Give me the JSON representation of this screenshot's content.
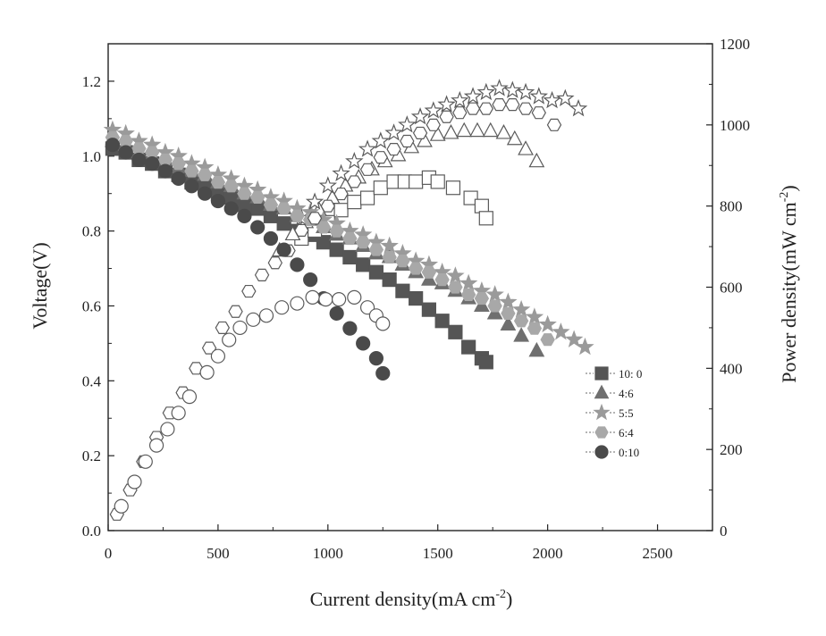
{
  "chart_data": {
    "type": "scatter",
    "xlabel": "Current density(mA cm",
    "xlabel_sup": "-2",
    "xlabel_end": ")",
    "ylabel_left": "Voltage(V)",
    "ylabel_right": "Power density(mW cm",
    "ylabel_right_sup": "-2",
    "ylabel_right_end": ")",
    "xlim": [
      0,
      2750
    ],
    "ylim_left": [
      0,
      1.3
    ],
    "ylim_right": [
      0,
      1200
    ],
    "x_ticks": [
      "0",
      "500",
      "1000",
      "1500",
      "2000",
      "2500"
    ],
    "y_left_ticks": [
      "0.0",
      "0.2",
      "0.4",
      "0.6",
      "0.8",
      "1.0",
      "1.2"
    ],
    "y_right_ticks": [
      "0",
      "200",
      "400",
      "600",
      "800",
      "1000",
      "1200"
    ],
    "grid": false,
    "legend_position": "right",
    "colors": {
      "s10_0": "#555555",
      "s4_6": "#6f6f6f",
      "s5_5": "#9a9a9a",
      "s6_4": "#a8a8a8",
      "s0_10": "#4a4a4a"
    },
    "series": [
      {
        "name": "10:  0",
        "marker": "square",
        "voltage": {
          "x": [
            20,
            80,
            140,
            200,
            260,
            320,
            380,
            440,
            500,
            560,
            620,
            680,
            740,
            800,
            860,
            920,
            980,
            1040,
            1100,
            1160,
            1220,
            1280,
            1340,
            1400,
            1460,
            1520,
            1580,
            1640,
            1700,
            1720
          ],
          "y": [
            1.02,
            1.01,
            0.99,
            0.98,
            0.96,
            0.95,
            0.93,
            0.92,
            0.9,
            0.89,
            0.87,
            0.86,
            0.84,
            0.82,
            0.8,
            0.79,
            0.77,
            0.75,
            0.73,
            0.71,
            0.69,
            0.67,
            0.64,
            0.62,
            0.59,
            0.56,
            0.53,
            0.49,
            0.46,
            0.45
          ]
        },
        "power": {
          "x": [
            880,
            940,
            1000,
            1060,
            1120,
            1180,
            1240,
            1300,
            1350,
            1400,
            1460,
            1500,
            1570,
            1650,
            1700,
            1720
          ],
          "y": [
            720,
            740,
            760,
            790,
            810,
            820,
            845,
            860,
            860,
            860,
            870,
            860,
            845,
            820,
            800,
            770
          ]
        }
      },
      {
        "name": "4:6",
        "marker": "triangle",
        "voltage": {
          "x": [
            20,
            80,
            140,
            200,
            260,
            320,
            380,
            440,
            500,
            560,
            620,
            680,
            740,
            800,
            860,
            920,
            980,
            1040,
            1100,
            1160,
            1220,
            1280,
            1340,
            1400,
            1460,
            1520,
            1580,
            1640,
            1700,
            1760,
            1820,
            1880,
            1950
          ],
          "y": [
            1.04,
            1.03,
            1.01,
            1.0,
            0.99,
            0.97,
            0.96,
            0.95,
            0.93,
            0.92,
            0.9,
            0.89,
            0.87,
            0.86,
            0.84,
            0.83,
            0.81,
            0.79,
            0.78,
            0.76,
            0.74,
            0.73,
            0.71,
            0.69,
            0.67,
            0.66,
            0.64,
            0.62,
            0.6,
            0.58,
            0.55,
            0.52,
            0.48
          ]
        },
        "power": {
          "x": [
            780,
            840,
            900,
            960,
            1020,
            1080,
            1140,
            1200,
            1260,
            1320,
            1380,
            1440,
            1500,
            1560,
            1620,
            1680,
            1740,
            1800,
            1850,
            1900,
            1950
          ],
          "y": [
            690,
            730,
            760,
            790,
            820,
            850,
            870,
            890,
            910,
            925,
            945,
            960,
            975,
            980,
            985,
            985,
            985,
            980,
            965,
            940,
            910
          ]
        }
      },
      {
        "name": "5:5",
        "marker": "star",
        "voltage": {
          "x": [
            20,
            80,
            140,
            200,
            260,
            320,
            380,
            440,
            500,
            560,
            620,
            680,
            740,
            800,
            860,
            920,
            980,
            1040,
            1100,
            1160,
            1220,
            1280,
            1340,
            1400,
            1460,
            1520,
            1580,
            1640,
            1700,
            1760,
            1820,
            1880,
            1940,
            2000,
            2060,
            2120,
            2170
          ],
          "y": [
            1.07,
            1.06,
            1.04,
            1.03,
            1.01,
            1.0,
            0.98,
            0.97,
            0.95,
            0.94,
            0.92,
            0.91,
            0.89,
            0.88,
            0.86,
            0.85,
            0.83,
            0.82,
            0.8,
            0.79,
            0.77,
            0.76,
            0.74,
            0.72,
            0.71,
            0.69,
            0.68,
            0.66,
            0.64,
            0.63,
            0.61,
            0.59,
            0.57,
            0.55,
            0.53,
            0.51,
            0.49
          ]
        },
        "power": {
          "x": [
            880,
            940,
            1000,
            1060,
            1120,
            1180,
            1240,
            1300,
            1360,
            1420,
            1480,
            1540,
            1600,
            1660,
            1720,
            1780,
            1840,
            1900,
            1960,
            2020,
            2080,
            2140
          ],
          "y": [
            770,
            810,
            850,
            880,
            910,
            940,
            960,
            980,
            1000,
            1020,
            1035,
            1050,
            1060,
            1070,
            1080,
            1090,
            1085,
            1080,
            1070,
            1060,
            1065,
            1040
          ]
        }
      },
      {
        "name": "6:4",
        "marker": "hexagon",
        "voltage": {
          "x": [
            20,
            80,
            140,
            200,
            260,
            320,
            380,
            440,
            500,
            560,
            620,
            680,
            740,
            800,
            860,
            920,
            980,
            1040,
            1100,
            1160,
            1220,
            1280,
            1340,
            1400,
            1460,
            1520,
            1580,
            1640,
            1700,
            1760,
            1820,
            1880,
            1940,
            2000
          ],
          "y": [
            1.05,
            1.04,
            1.02,
            1.01,
            0.99,
            0.98,
            0.96,
            0.95,
            0.93,
            0.92,
            0.9,
            0.89,
            0.87,
            0.86,
            0.84,
            0.83,
            0.81,
            0.8,
            0.78,
            0.77,
            0.75,
            0.73,
            0.72,
            0.7,
            0.69,
            0.67,
            0.65,
            0.63,
            0.62,
            0.6,
            0.58,
            0.56,
            0.54,
            0.51
          ]
        },
        "power": {
          "x": [
            40,
            100,
            160,
            220,
            280,
            340,
            400,
            460,
            520,
            580,
            640,
            700,
            760,
            820,
            880,
            940,
            1000,
            1060,
            1120,
            1180,
            1240,
            1300,
            1360,
            1420,
            1480,
            1540,
            1600,
            1660,
            1720,
            1780,
            1840,
            1900,
            1960,
            2030
          ],
          "y": [
            40,
            100,
            170,
            230,
            290,
            340,
            400,
            450,
            500,
            540,
            590,
            630,
            660,
            690,
            740,
            770,
            800,
            830,
            860,
            890,
            920,
            940,
            960,
            980,
            1000,
            1020,
            1030,
            1040,
            1040,
            1050,
            1050,
            1040,
            1030,
            1000
          ]
        }
      },
      {
        "name": "0:10",
        "marker": "circle",
        "voltage": {
          "x": [
            20,
            80,
            140,
            200,
            260,
            320,
            380,
            440,
            500,
            560,
            620,
            680,
            740,
            800,
            860,
            920,
            980,
            1040,
            1100,
            1160,
            1220,
            1250
          ],
          "y": [
            1.03,
            1.01,
            0.99,
            0.98,
            0.96,
            0.94,
            0.92,
            0.9,
            0.88,
            0.86,
            0.84,
            0.81,
            0.78,
            0.75,
            0.71,
            0.67,
            0.62,
            0.58,
            0.54,
            0.5,
            0.46,
            0.42
          ]
        },
        "power": {
          "x": [
            60,
            120,
            170,
            220,
            270,
            320,
            370,
            450,
            500,
            550,
            600,
            660,
            720,
            790,
            860,
            930,
            990,
            1050,
            1120,
            1180,
            1220,
            1250
          ],
          "y": [
            60,
            120,
            170,
            210,
            250,
            290,
            330,
            390,
            430,
            470,
            500,
            520,
            530,
            550,
            560,
            575,
            570,
            570,
            575,
            550,
            530,
            510
          ]
        }
      }
    ]
  }
}
